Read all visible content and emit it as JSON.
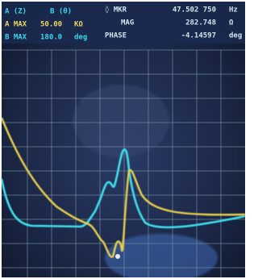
{
  "status": {
    "a_label": "A (Z)",
    "b_label": "B (θ)",
    "a_max_label": "A MAX",
    "a_max_value": "50.00",
    "a_max_unit": "KΩ",
    "b_max_label": "B MAX",
    "b_max_value": "180.0",
    "b_max_unit": "deg"
  },
  "marker": {
    "label": "◊ MKR",
    "frequency": "47.502 750",
    "frequency_unit": "Hz",
    "mag_label": "MAG",
    "mag_value": "282.748",
    "mag_unit": "Ω",
    "phase_label": "PHASE",
    "phase_value": "-4.14597",
    "phase_unit": "deg"
  }
}
